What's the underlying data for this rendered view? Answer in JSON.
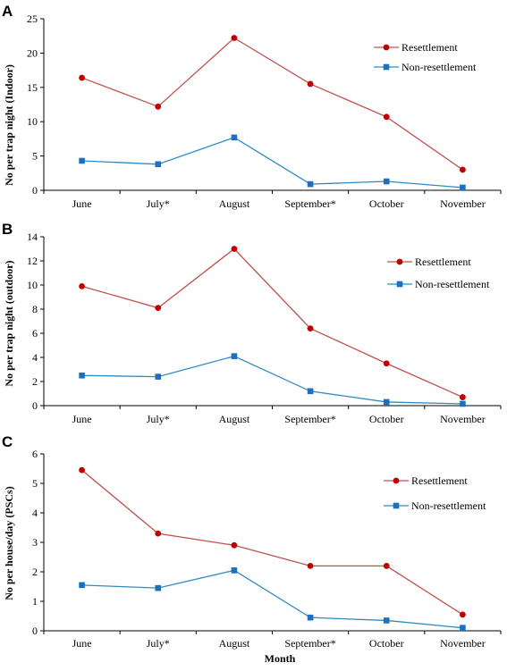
{
  "figure": {
    "xlabel": "Month"
  },
  "chart_data": [
    {
      "type": "line",
      "panel": "A",
      "ylabel": "No per trap night (Indoor)",
      "xlabel": "",
      "categories": [
        "June",
        "July*",
        "August",
        "September*",
        "October",
        "November"
      ],
      "ylim": [
        0,
        25
      ],
      "yticks": [
        0,
        5,
        10,
        15,
        20,
        25
      ],
      "legend_position": "top-right",
      "grid": false,
      "series": [
        {
          "name": "Resettlement",
          "color": "#c0504d",
          "marker_color": "#c00000",
          "marker": "circle",
          "values": [
            16.4,
            12.2,
            22.2,
            15.5,
            10.7,
            3.0
          ]
        },
        {
          "name": "Non-resettlement",
          "color": "#2e8bc0",
          "marker_color": "#1f6fbf",
          "marker": "square",
          "values": [
            4.3,
            3.8,
            7.7,
            0.9,
            1.3,
            0.4
          ]
        }
      ]
    },
    {
      "type": "line",
      "panel": "B",
      "ylabel": "No per trap night (outdoor)",
      "xlabel": "",
      "categories": [
        "June",
        "July*",
        "August",
        "September*",
        "October",
        "November"
      ],
      "ylim": [
        0,
        14
      ],
      "yticks": [
        0,
        2,
        4,
        6,
        8,
        10,
        12,
        14
      ],
      "legend_position": "top-right",
      "grid": false,
      "series": [
        {
          "name": "Resettlement",
          "color": "#c0504d",
          "marker_color": "#c00000",
          "marker": "circle",
          "values": [
            9.9,
            8.1,
            13.0,
            6.4,
            3.5,
            0.7
          ]
        },
        {
          "name": "Non-resettlement",
          "color": "#2e8bc0",
          "marker_color": "#1f6fbf",
          "marker": "square",
          "values": [
            2.5,
            2.4,
            4.1,
            1.2,
            0.3,
            0.15
          ]
        }
      ]
    },
    {
      "type": "line",
      "panel": "C",
      "ylabel": "No per house/day (PSCs)",
      "xlabel": "Month",
      "categories": [
        "June",
        "July*",
        "August",
        "September*",
        "October",
        "November"
      ],
      "ylim": [
        0,
        6
      ],
      "yticks": [
        0,
        1,
        2,
        3,
        4,
        5,
        6
      ],
      "legend_position": "top-right",
      "grid": false,
      "series": [
        {
          "name": "Resettlement",
          "color": "#c0504d",
          "marker_color": "#c00000",
          "marker": "circle",
          "values": [
            5.45,
            3.3,
            2.9,
            2.2,
            2.2,
            0.55
          ]
        },
        {
          "name": "Non-resettlement",
          "color": "#2e8bc0",
          "marker_color": "#1f6fbf",
          "marker": "square",
          "values": [
            1.55,
            1.45,
            2.05,
            0.45,
            0.35,
            0.1
          ]
        }
      ]
    }
  ]
}
